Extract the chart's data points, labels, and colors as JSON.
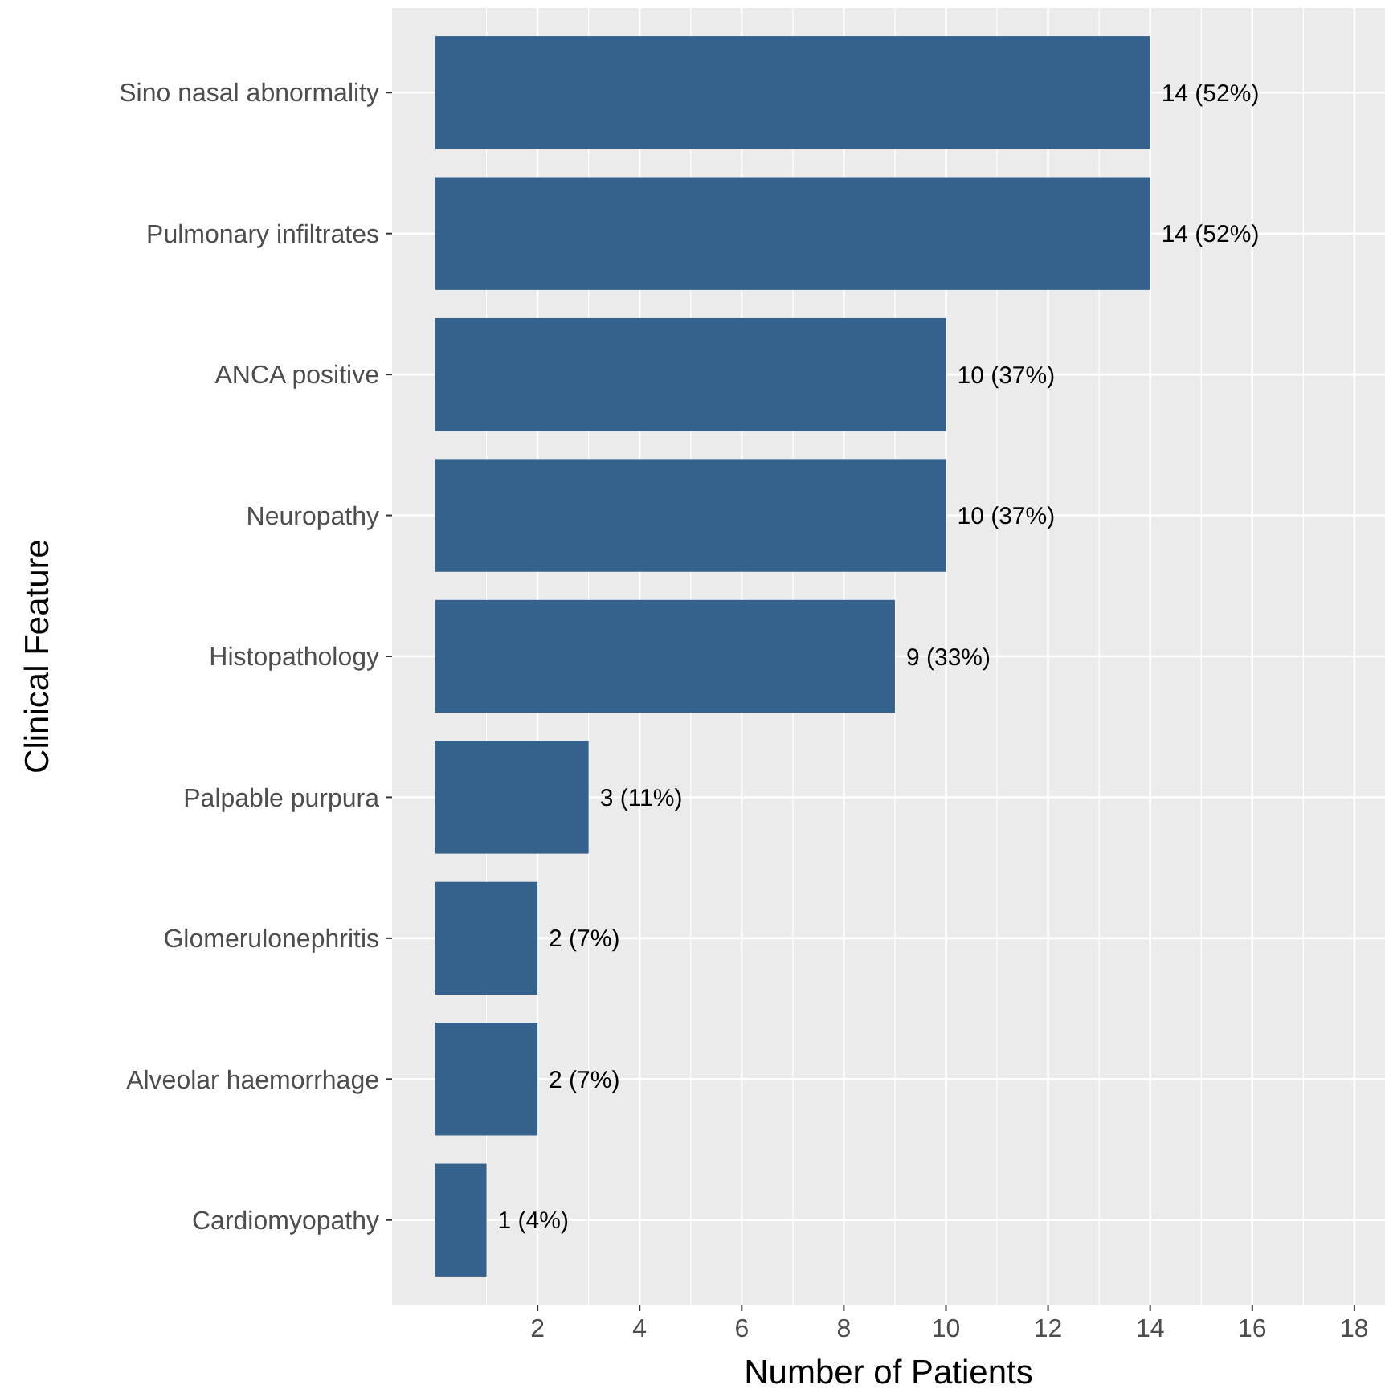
{
  "chart_data": {
    "type": "bar",
    "orientation": "horizontal",
    "xlabel": "Number of Patients",
    "ylabel": "Clinical Feature",
    "categories": [
      "Sino nasal abnormality",
      "Pulmonary infiltrates",
      "ANCA positive",
      "Neuropathy",
      "Histopathology",
      "Palpable purpura",
      "Glomerulonephritis",
      "Alveolar haemorrhage",
      "Cardiomyopathy"
    ],
    "values": [
      14,
      14,
      10,
      10,
      9,
      3,
      2,
      2,
      1
    ],
    "value_labels": [
      "14 (52%)",
      "14 (52%)",
      "10 (37%)",
      "10 (37%)",
      "9 (33%)",
      "3 (11%)",
      "2 (7%)",
      "2 (7%)",
      "1 (4%)"
    ],
    "color": "#35618d",
    "xlim": [
      -0.85,
      18.6
    ],
    "xticks": [
      2,
      4,
      6,
      8,
      10,
      12,
      14,
      16,
      18
    ],
    "grid": true
  }
}
